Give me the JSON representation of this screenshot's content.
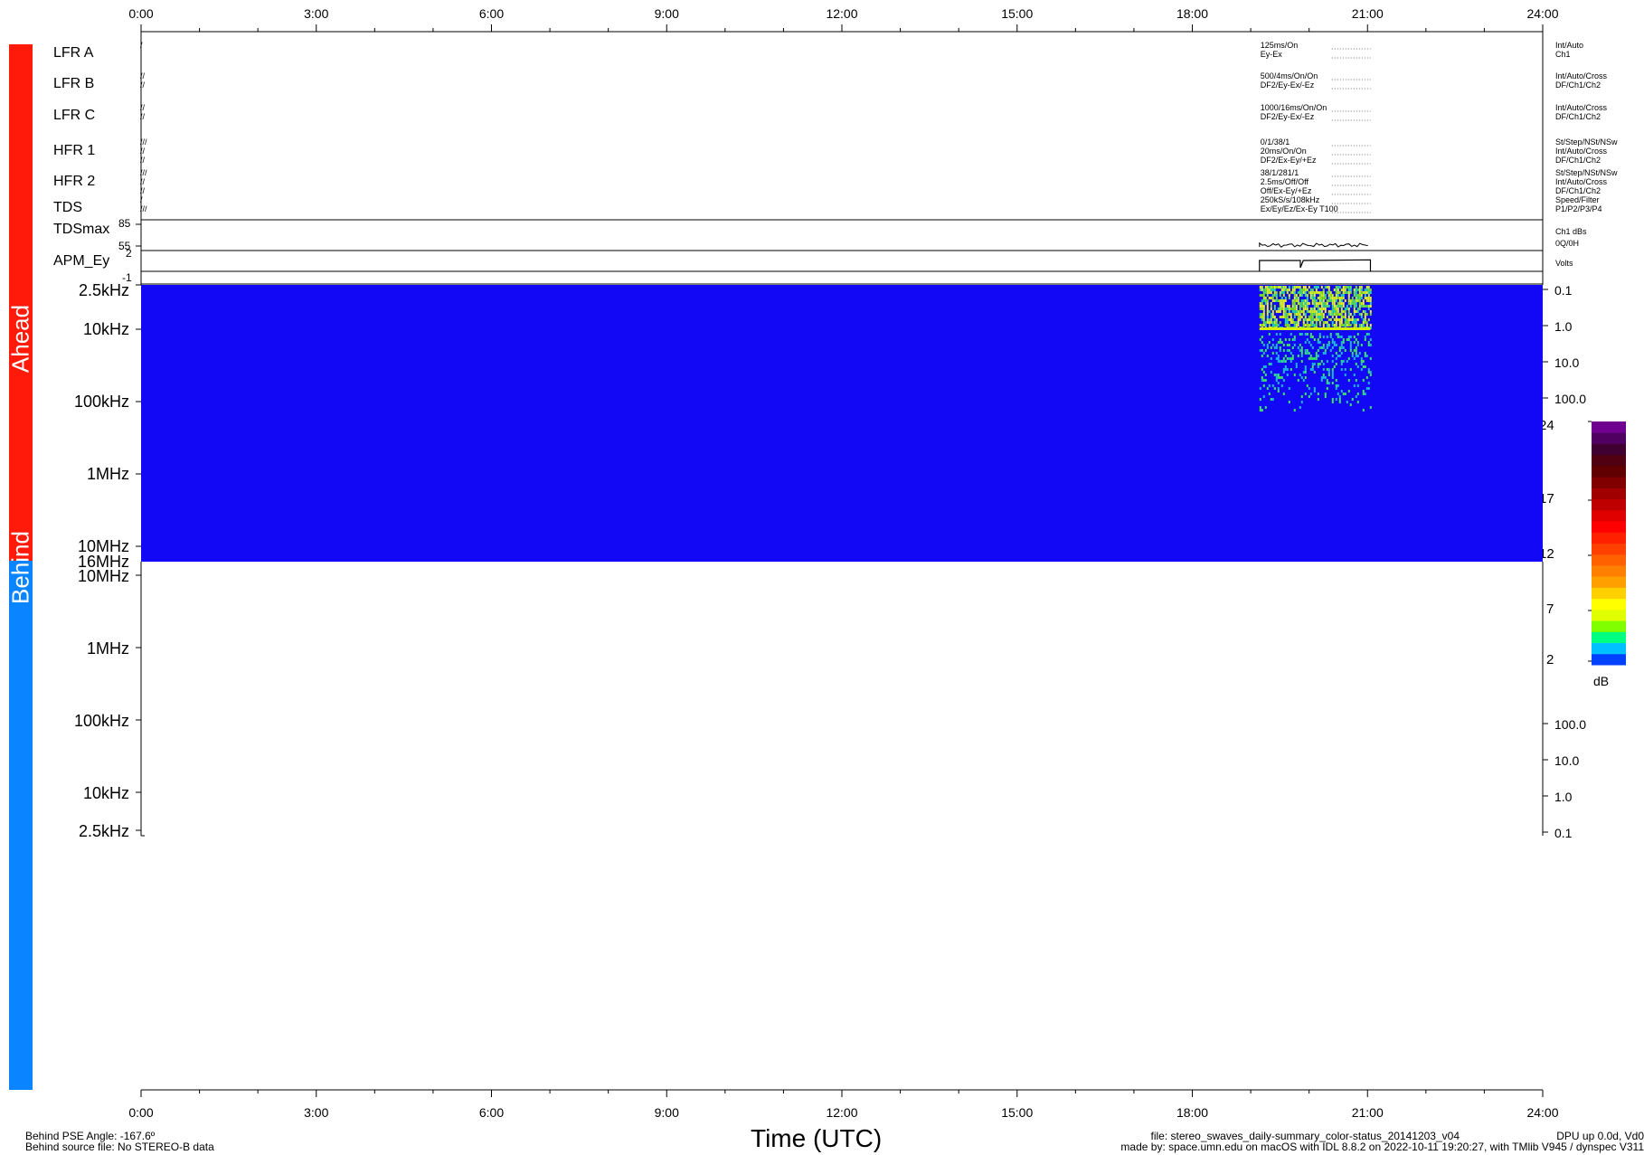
{
  "time_axis": {
    "labels": [
      "0:00",
      "3:00",
      "6:00",
      "9:00",
      "12:00",
      "15:00",
      "18:00",
      "21:00",
      "24:00"
    ],
    "title": "Time (UTC)"
  },
  "spacecraft": {
    "ahead": {
      "label": "Ahead",
      "color": "#ff1a0a"
    },
    "behind": {
      "label": "Behind",
      "color": "#0a84ff"
    }
  },
  "status_rows": [
    {
      "name": "LFR A",
      "left_marks": [
        "/"
      ],
      "modes": [
        "125ms/On",
        "Ey-Ex"
      ],
      "right": [
        "Int/Auto",
        "Ch1"
      ]
    },
    {
      "name": "LFR B",
      "left_marks": [
        "//",
        "//"
      ],
      "modes": [
        "500/4ms/On/On",
        "DF2/Ey-Ex/-Ez"
      ],
      "right": [
        "Int/Auto/Cross",
        "DF/Ch1/Ch2"
      ]
    },
    {
      "name": "LFR C",
      "left_marks": [
        "//",
        "//"
      ],
      "modes": [
        "1000/16ms/On/On",
        "DF2/Ey-Ex/-Ez"
      ],
      "right": [
        "Int/Auto/Cross",
        "DF/Ch1/Ch2"
      ]
    },
    {
      "name": "HFR 1",
      "left_marks": [
        "///",
        "//",
        "//"
      ],
      "modes": [
        "0/1/38/1",
        "20ms/On/On",
        "DF2/Ex-Ey/+Ez"
      ],
      "right": [
        "St/Step/NSt/NSw",
        "Int/Auto/Cross",
        "DF/Ch1/Ch2"
      ]
    },
    {
      "name": "HFR 2",
      "left_marks": [
        "///",
        "//",
        "//"
      ],
      "modes": [
        "38/1/281/1",
        "2.5ms/Off/Off",
        "Off/Ex-Ey/+Ez"
      ],
      "right": [
        "St/Step/NSt/NSw",
        "Int/Auto/Cross",
        "DF/Ch1/Ch2"
      ]
    },
    {
      "name": "TDS",
      "left_marks": [
        "/",
        "///"
      ],
      "modes": [
        "250kS/s/108kHz",
        "Ex/Ey/Ez/Ex-Ey T100"
      ],
      "right": [
        "Speed/Filter",
        "P1/P2/P3/P4"
      ]
    }
  ],
  "tdsmax": {
    "label": "TDSmax",
    "ticks": [
      "85",
      "55"
    ],
    "right_top": "Ch1 dBs",
    "right_bottom": "0Q/0H"
  },
  "apm": {
    "label": "APM_Ey",
    "ticks": [
      "2",
      "-1"
    ],
    "right": "Volts"
  },
  "ahead_panel": {
    "freq_labels": [
      "2.5kHz",
      "10kHz",
      "100kHz",
      "1MHz",
      "10MHz",
      "16MHz"
    ],
    "right_labels": [
      "0.1",
      "1.0",
      "10.0",
      "100.0"
    ],
    "background_color": "#1208f5"
  },
  "behind_panel": {
    "freq_labels": [
      "10MHz",
      "1MHz",
      "100kHz",
      "10kHz",
      "2.5kHz"
    ],
    "right_labels": [
      "100.0",
      "10.0",
      "1.0",
      "0.1"
    ]
  },
  "colorbar": {
    "ticks": [
      "24",
      "17",
      "12",
      "7",
      "2"
    ],
    "unit": "dB"
  },
  "footer": {
    "left_line1": "Behind PSE Angle: -167.6º",
    "left_line2": "Behind source file: No STEREO-B data",
    "right_line1": "file: stereo_swaves_daily-summary_color-status_20141203_v04",
    "right_line2": "made by: space.umn.edu on macOS with IDL 8.8.2 on 2022-10-11 19:20:27, with TMlib V945 / dynspec V311",
    "corner_line1": "DPU up 0.0d, Vd0"
  },
  "chart_data": {
    "type": "heatmap",
    "title": "",
    "xlabel": "Time (UTC)",
    "x_range_hours": [
      0,
      24
    ],
    "ahead_data_span_hours": [
      19.15,
      21.05
    ],
    "ahead_apm_ey_volts": [
      {
        "t": 19.15,
        "v": 0.8
      },
      {
        "t": 19.85,
        "v": 0.8
      },
      {
        "t": 19.85,
        "v": -0.4
      },
      {
        "t": 19.9,
        "v": 0.8
      },
      {
        "t": 21.05,
        "v": 0.9
      }
    ],
    "ahead_tdsmax_db_approx": 54,
    "colorbar_db_range": [
      2,
      24
    ],
    "behind_data": "none"
  }
}
